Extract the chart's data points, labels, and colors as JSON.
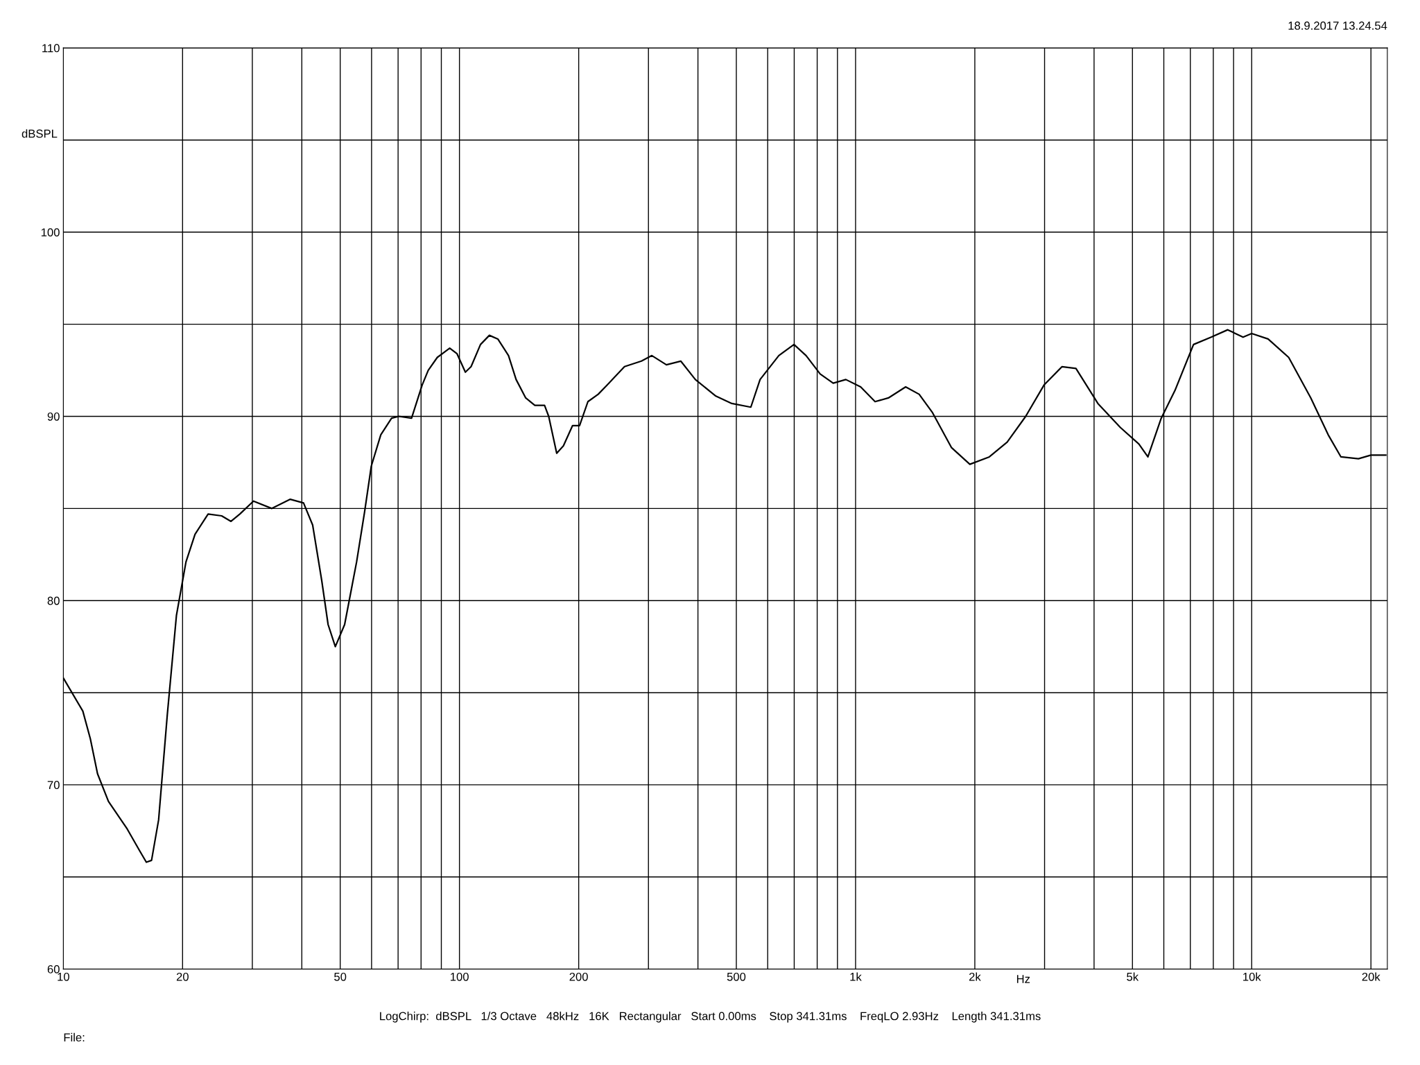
{
  "chart_data": {
    "type": "line",
    "xlabel": "Hz",
    "ylabel": "dBSPL",
    "annotations": [
      "18.9.2017 13.24.54",
      "LogChirp:  dBSPL   1/3 Octave   48kHz   16K   Rectangular   Start 0.00ms    Stop 341.31ms    FreqLO 2.93Hz    Length 341.31ms",
      "File:"
    ],
    "log": "x",
    "grid": true,
    "marker": "none",
    "line_style": "solid",
    "xlim": [
      10,
      22000
    ],
    "ylim": [
      60,
      110
    ],
    "xticks": [
      10,
      20,
      {
        "value": 30,
        "label": null
      },
      {
        "value": 40,
        "label": null
      },
      50,
      {
        "value": 60,
        "label": null
      },
      {
        "value": 70,
        "label": null
      },
      {
        "value": 80,
        "label": null
      },
      {
        "value": 90,
        "label": null
      },
      100,
      200,
      {
        "value": 300,
        "label": null
      },
      {
        "value": 400,
        "label": null
      },
      500,
      {
        "value": 600,
        "label": null
      },
      {
        "value": 700,
        "label": null
      },
      {
        "value": 800,
        "label": null
      },
      {
        "value": 900,
        "label": null
      },
      {
        "value": 1000,
        "label": "1k"
      },
      {
        "value": 2000,
        "label": "2k"
      },
      {
        "value": 3000,
        "label": null
      },
      {
        "value": 4000,
        "label": null
      },
      {
        "value": 5000,
        "label": "5k"
      },
      {
        "value": 6000,
        "label": null
      },
      {
        "value": 7000,
        "label": null
      },
      {
        "value": 8000,
        "label": null
      },
      {
        "value": 9000,
        "label": null
      },
      {
        "value": 10000,
        "label": "10k"
      },
      {
        "value": 20000,
        "label": "20k"
      }
    ],
    "yticks": [
      60,
      {
        "value": 65,
        "label": null
      },
      70,
      {
        "value": 75,
        "label": null
      },
      80,
      {
        "value": 85,
        "label": null
      },
      90,
      {
        "value": 95,
        "label": null
      },
      100,
      {
        "value": 105,
        "label": null
      },
      110
    ],
    "series": [
      {
        "color": "#000000",
        "x": [
          10,
          11.2,
          11.7,
          12.2,
          13,
          14.5,
          15.6,
          16.2,
          16.7,
          17.4,
          18.3,
          19.3,
          20.4,
          21.5,
          23.2,
          25.1,
          26.5,
          27.9,
          30.2,
          33.6,
          37.4,
          40.4,
          42.6,
          44.9,
          46.6,
          48.6,
          51.3,
          55,
          57.6,
          59.9,
          63.3,
          67.4,
          70.3,
          75.7,
          80.5,
          83.4,
          87.9,
          94.5,
          98.6,
          103.5,
          107,
          113,
          119,
          125,
          133,
          139,
          147,
          155,
          164,
          168,
          176,
          183,
          193,
          201,
          211,
          224,
          236,
          261,
          288,
          306,
          333,
          362,
          394,
          444,
          487,
          544,
          574,
          640,
          699,
          750,
          814,
          878,
          945,
          1030,
          1120,
          1210,
          1338,
          1447,
          1564,
          1747,
          1943,
          2176,
          2414,
          2688,
          2990,
          3321,
          3600,
          4090,
          4660,
          5190,
          5470,
          5910,
          6400,
          7130,
          7900,
          8700,
          9510,
          10000,
          11000,
          12400,
          14100,
          15600,
          16800,
          18600,
          20000,
          21800
        ],
        "values": [
          75.8,
          74.0,
          72.5,
          70.6,
          69.1,
          67.6,
          66.4,
          65.8,
          65.9,
          68.1,
          73.8,
          79.2,
          82.1,
          83.6,
          84.7,
          84.6,
          84.3,
          84.7,
          85.4,
          85.0,
          85.5,
          85.3,
          84.1,
          81.1,
          78.7,
          77.5,
          78.7,
          82.1,
          84.8,
          87.3,
          89.0,
          89.9,
          90.0,
          89.9,
          91.7,
          92.5,
          93.2,
          93.7,
          93.4,
          92.4,
          92.7,
          93.9,
          94.4,
          94.2,
          93.3,
          92.0,
          91.0,
          90.6,
          90.6,
          90.0,
          88.0,
          88.4,
          89.5,
          89.5,
          90.8,
          91.2,
          91.7,
          92.7,
          93.0,
          93.3,
          92.8,
          93.0,
          92.0,
          91.1,
          90.7,
          90.5,
          92.0,
          93.3,
          93.9,
          93.3,
          92.3,
          91.8,
          92.0,
          91.6,
          90.8,
          91.0,
          91.6,
          91.2,
          90.2,
          88.3,
          87.4,
          87.8,
          88.6,
          90.0,
          91.7,
          92.7,
          92.6,
          90.7,
          89.4,
          88.5,
          87.8,
          89.9,
          91.4,
          93.9,
          94.3,
          94.7,
          94.3,
          94.5,
          94.2,
          93.2,
          91.0,
          89.0,
          87.8,
          87.7,
          87.9,
          87.9
        ]
      }
    ]
  }
}
